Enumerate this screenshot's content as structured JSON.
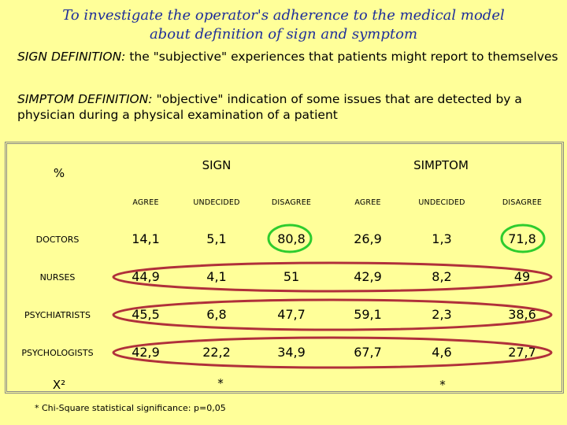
{
  "title": {
    "line1": "To investigate the operator's adherence to the medical model",
    "line2": "about definition of sign and symptom"
  },
  "sign_definition": {
    "lead": "SIGN DEFINITION:",
    "text": " the \"subjective\" experiences that patients might report to themselves"
  },
  "symptom_definition": {
    "lead": "SIMPTOM DEFINITION:",
    "text": " \"objective\" indication of some issues that are detected by a physician during a physical examination of a patient"
  },
  "table": {
    "corner": "%",
    "groups": [
      "SIGN",
      "SIMPTOM"
    ],
    "columns": [
      "AGREE",
      "UNDECIDED",
      "DISAGREE",
      "AGREE",
      "UNDECIDED",
      "DISAGREE"
    ],
    "rows": [
      {
        "label": "DOCTORS",
        "values": [
          "14,1",
          "5,1",
          "80,8",
          "26,9",
          "1,3",
          "71,8"
        ]
      },
      {
        "label": "NURSES",
        "values": [
          "44,9",
          "4,1",
          "51",
          "42,9",
          "8,2",
          "49"
        ]
      },
      {
        "label": "PSYCHIATRISTS",
        "values": [
          "45,5",
          "6,8",
          "47,7",
          "59,1",
          "2,3",
          "38,6"
        ]
      },
      {
        "label": "PSYCHOLOGISTS",
        "values": [
          "42,9",
          "22,2",
          "34,9",
          "67,7",
          "4,6",
          "27,7"
        ]
      }
    ],
    "chi_label": "X²",
    "chi_sign": "*",
    "chi_symptom": "*"
  },
  "footnote": "* Chi-Square statistical significance: p=0,05",
  "colors": {
    "title": "#1f2f9a",
    "background": "#ffff99",
    "green_ellipse": "#2ecc2e",
    "red_ellipse": "#b0303a"
  }
}
